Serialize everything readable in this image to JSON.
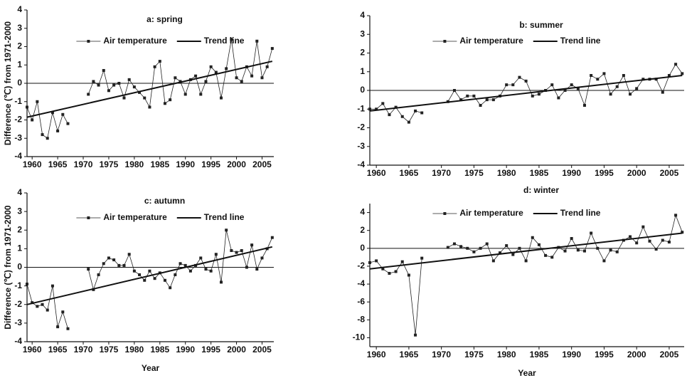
{
  "chart_data": [
    {
      "type": "line",
      "title": "a: spring",
      "ylabel": "Difference (℃) from 1971-2000",
      "x": [
        1959,
        1960,
        1961,
        1962,
        1963,
        1964,
        1965,
        1966,
        1967,
        1968,
        1969,
        1970,
        1971,
        1972,
        1973,
        1974,
        1975,
        1976,
        1977,
        1978,
        1979,
        1980,
        1981,
        1982,
        1983,
        1984,
        1985,
        1986,
        1987,
        1988,
        1989,
        1990,
        1991,
        1992,
        1993,
        1994,
        1995,
        1996,
        1997,
        1998,
        1999,
        2000,
        2001,
        2002,
        2003,
        2004,
        2005,
        2006,
        2007
      ],
      "xlim": [
        1959,
        2007.3
      ],
      "xticks": [
        1960,
        1965,
        1970,
        1975,
        1980,
        1985,
        1990,
        1995,
        2000,
        2005
      ],
      "ylim": [
        -4,
        4
      ],
      "yticks": [
        -4,
        -3,
        -2,
        -1,
        0,
        1,
        2,
        3,
        4
      ],
      "reference_line": 0,
      "series": [
        {
          "name": "Air temperature",
          "color": "#222222",
          "marker": "square",
          "values": [
            -1.3,
            -2.0,
            -1.0,
            -2.8,
            -3.0,
            -1.6,
            -2.6,
            -1.7,
            -2.2,
            null,
            null,
            null,
            -0.6,
            0.1,
            -0.1,
            0.7,
            -0.4,
            -0.1,
            0.0,
            -0.8,
            0.2,
            -0.2,
            -0.5,
            -0.8,
            -1.3,
            0.9,
            1.2,
            -1.1,
            -0.9,
            0.3,
            0.1,
            -0.6,
            0.2,
            0.4,
            -0.6,
            0.1,
            0.9,
            0.6,
            -0.8,
            0.8,
            2.4,
            0.3,
            0.1,
            0.9,
            0.4,
            2.3,
            0.3,
            0.9,
            1.9
          ]
        },
        {
          "name": "Trend line",
          "color": "#111111",
          "x": [
            1959,
            2007
          ],
          "values": [
            -1.85,
            1.2
          ]
        }
      ]
    },
    {
      "type": "line",
      "title": "b: summer",
      "x": [
        1959,
        1960,
        1961,
        1962,
        1963,
        1964,
        1965,
        1966,
        1967,
        1968,
        1969,
        1970,
        1971,
        1972,
        1973,
        1974,
        1975,
        1976,
        1977,
        1978,
        1979,
        1980,
        1981,
        1982,
        1983,
        1984,
        1985,
        1986,
        1987,
        1988,
        1989,
        1990,
        1991,
        1992,
        1993,
        1994,
        1995,
        1996,
        1997,
        1998,
        1999,
        2000,
        2001,
        2002,
        2003,
        2004,
        2005,
        2006,
        2007
      ],
      "xlim": [
        1959,
        2007.3
      ],
      "xticks": [
        1960,
        1965,
        1970,
        1975,
        1980,
        1985,
        1990,
        1995,
        2000,
        2005
      ],
      "ylim": [
        -4,
        4
      ],
      "yticks": [
        -4,
        -3,
        -2,
        -1,
        0,
        1,
        2,
        3,
        4
      ],
      "reference_line": 0,
      "series": [
        {
          "name": "Air temperature",
          "color": "#222222",
          "marker": "square",
          "values": [
            -1.0,
            -1.0,
            -0.7,
            -1.3,
            -0.9,
            -1.4,
            -1.7,
            -1.1,
            -1.2,
            null,
            null,
            null,
            -0.6,
            0.0,
            -0.5,
            -0.3,
            -0.3,
            -0.8,
            -0.5,
            -0.5,
            -0.3,
            0.3,
            0.3,
            0.7,
            0.5,
            -0.3,
            -0.2,
            0.0,
            0.3,
            -0.4,
            0.0,
            0.3,
            0.1,
            -0.8,
            0.8,
            0.6,
            0.9,
            -0.2,
            0.2,
            0.8,
            -0.2,
            0.1,
            0.6,
            0.6,
            0.6,
            -0.1,
            0.8,
            1.4,
            0.9
          ]
        },
        {
          "name": "Trend line",
          "color": "#111111",
          "x": [
            1959,
            2007
          ],
          "values": [
            -1.1,
            0.8
          ]
        }
      ]
    },
    {
      "type": "line",
      "title": "c: autumn",
      "xlabel": "Year",
      "ylabel": "Difference (℃) from 1971-2000",
      "x": [
        1959,
        1960,
        1961,
        1962,
        1963,
        1964,
        1965,
        1966,
        1967,
        1968,
        1969,
        1970,
        1971,
        1972,
        1973,
        1974,
        1975,
        1976,
        1977,
        1978,
        1979,
        1980,
        1981,
        1982,
        1983,
        1984,
        1985,
        1986,
        1987,
        1988,
        1989,
        1990,
        1991,
        1992,
        1993,
        1994,
        1995,
        1996,
        1997,
        1998,
        1999,
        2000,
        2001,
        2002,
        2003,
        2004,
        2005,
        2006,
        2007
      ],
      "xlim": [
        1959,
        2007.3
      ],
      "xticks": [
        1960,
        1965,
        1970,
        1975,
        1980,
        1985,
        1990,
        1995,
        2000,
        2005
      ],
      "ylim": [
        -4,
        4
      ],
      "yticks": [
        -4,
        -3,
        -2,
        -1,
        0,
        1,
        2,
        3,
        4
      ],
      "reference_line": 0,
      "series": [
        {
          "name": "Air temperature",
          "color": "#222222",
          "marker": "square",
          "values": [
            -0.9,
            -1.9,
            -2.1,
            -2.0,
            -2.3,
            -1.0,
            -3.2,
            -2.4,
            -3.3,
            null,
            null,
            null,
            -0.1,
            -1.2,
            -0.4,
            0.2,
            0.5,
            0.4,
            0.1,
            0.1,
            0.7,
            -0.2,
            -0.4,
            -0.7,
            -0.2,
            -0.6,
            -0.3,
            -0.7,
            -1.1,
            -0.4,
            0.2,
            0.1,
            -0.2,
            0.1,
            0.5,
            -0.1,
            -0.2,
            0.7,
            -0.8,
            2.0,
            0.9,
            0.8,
            0.9,
            0.0,
            1.2,
            -0.1,
            0.5,
            1.0,
            1.6
          ]
        },
        {
          "name": "Trend line",
          "color": "#111111",
          "x": [
            1959,
            2007
          ],
          "values": [
            -2.0,
            1.1
          ]
        }
      ]
    },
    {
      "type": "line",
      "title": "d: winter",
      "xlabel": "Year",
      "x": [
        1959,
        1960,
        1961,
        1962,
        1963,
        1964,
        1965,
        1966,
        1967,
        1968,
        1969,
        1970,
        1971,
        1972,
        1973,
        1974,
        1975,
        1976,
        1977,
        1978,
        1979,
        1980,
        1981,
        1982,
        1983,
        1984,
        1985,
        1986,
        1987,
        1988,
        1989,
        1990,
        1991,
        1992,
        1993,
        1994,
        1995,
        1996,
        1997,
        1998,
        1999,
        2000,
        2001,
        2002,
        2003,
        2004,
        2005,
        2006,
        2007
      ],
      "xlim": [
        1959,
        2007.3
      ],
      "xticks": [
        1960,
        1965,
        1970,
        1975,
        1980,
        1985,
        1990,
        1995,
        2000,
        2005
      ],
      "ylim": [
        -11,
        5
      ],
      "yticks": [
        -10,
        -8,
        -6,
        -4,
        -2,
        0,
        2,
        4
      ],
      "reference_line": 0,
      "series": [
        {
          "name": "Air temperature",
          "color": "#222222",
          "marker": "square",
          "values": [
            -1.6,
            -1.4,
            -2.3,
            -2.8,
            -2.6,
            -1.5,
            -3.0,
            -9.7,
            -1.1,
            null,
            null,
            null,
            0.1,
            0.5,
            0.2,
            0.0,
            -0.4,
            0.0,
            0.5,
            -1.4,
            -0.5,
            0.3,
            -0.7,
            0.0,
            -1.4,
            1.2,
            0.4,
            -0.8,
            -1.0,
            0.1,
            -0.3,
            1.1,
            -0.2,
            -0.3,
            1.7,
            0.0,
            -1.4,
            -0.2,
            -0.4,
            0.9,
            1.3,
            0.6,
            2.4,
            0.8,
            -0.1,
            0.9,
            0.7,
            3.7,
            1.8
          ]
        },
        {
          "name": "Trend line",
          "color": "#111111",
          "x": [
            1959,
            2007
          ],
          "values": [
            -2.3,
            1.7
          ]
        }
      ]
    }
  ]
}
